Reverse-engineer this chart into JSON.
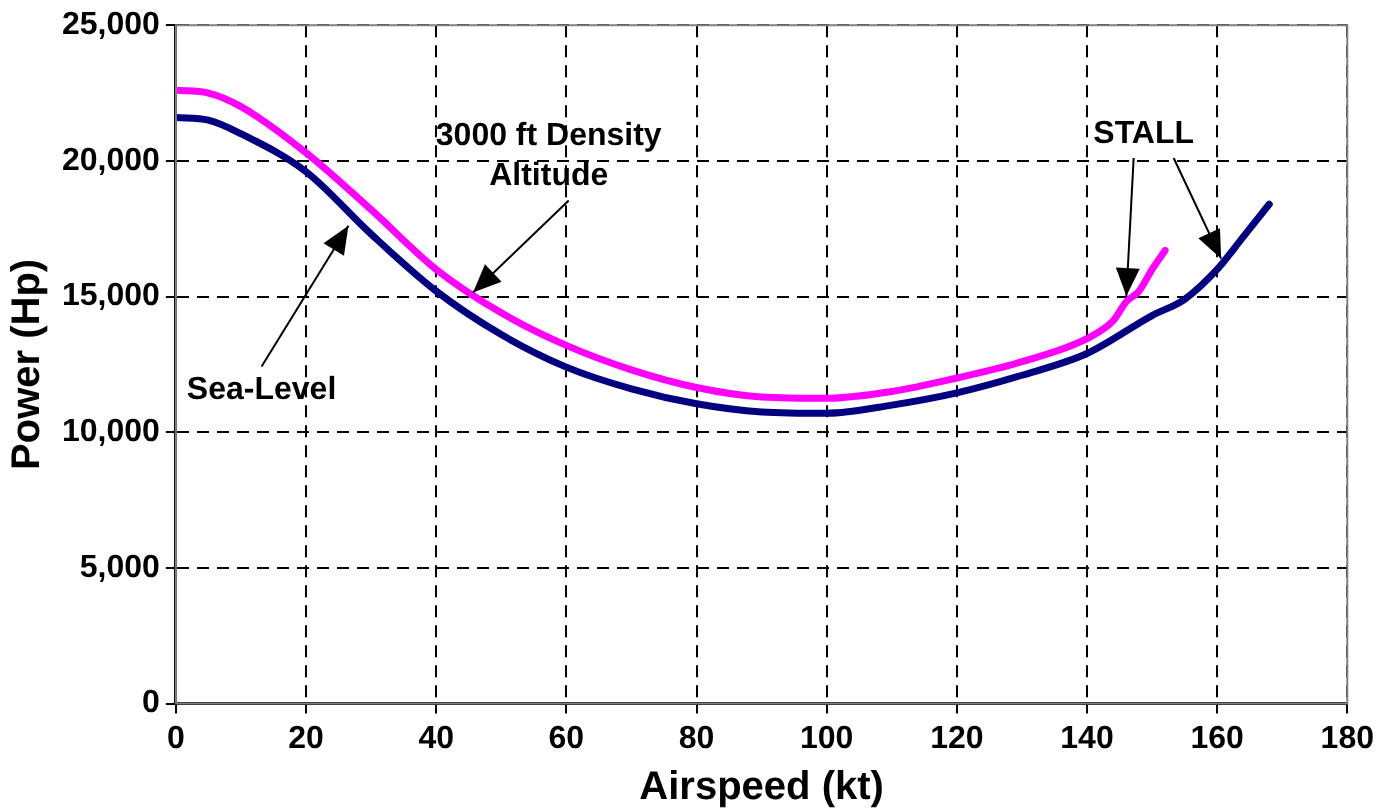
{
  "chart_data": {
    "type": "line",
    "xlabel": "Airspeed (kt)",
    "ylabel": "Power (Hp)",
    "xlim": [
      0,
      180
    ],
    "xticks": [
      0,
      20,
      40,
      60,
      80,
      100,
      120,
      140,
      160,
      180
    ],
    "ylim": [
      0,
      25000
    ],
    "yticks": [
      {
        "value": 0,
        "label": "0"
      },
      {
        "value": 5000,
        "label": "5,000"
      },
      {
        "value": 10000,
        "label": "10,000"
      },
      {
        "value": 15000,
        "label": "15,000"
      },
      {
        "value": 20000,
        "label": "20,000"
      },
      {
        "value": 25000,
        "label": "25,000"
      }
    ],
    "grid": true,
    "legend": false,
    "marker": "none",
    "line_style": "solid",
    "series": [
      {
        "color": "#000080",
        "x": [
          0,
          5,
          10,
          20,
          30,
          40,
          50,
          60,
          70,
          80,
          90,
          100,
          110,
          120,
          130,
          140,
          150,
          155,
          160,
          164,
          168
        ],
        "values": [
          21600,
          21500,
          21000,
          19600,
          17300,
          15200,
          13600,
          12400,
          11600,
          11050,
          10750,
          10700,
          11000,
          11450,
          12100,
          12900,
          14300,
          14900,
          16000,
          17200,
          18400
        ]
      },
      {
        "color": "#ff00ff",
        "x": [
          0,
          5,
          10,
          20,
          30,
          40,
          50,
          60,
          70,
          80,
          90,
          100,
          110,
          120,
          130,
          140,
          144,
          146,
          148,
          150,
          152
        ],
        "values": [
          22600,
          22500,
          22000,
          20300,
          18200,
          16000,
          14400,
          13200,
          12300,
          11650,
          11300,
          11250,
          11500,
          12000,
          12600,
          13450,
          14100,
          14800,
          15200,
          16000,
          16700
        ]
      }
    ],
    "annotations": [
      {
        "text": "3000 ft Density Altitude",
        "x": 45,
        "y": 15000
      },
      {
        "text": "Sea-Level",
        "x": 27,
        "y": 17800
      },
      {
        "text": "STALL",
        "x": 161,
        "y": 16200
      }
    ]
  }
}
